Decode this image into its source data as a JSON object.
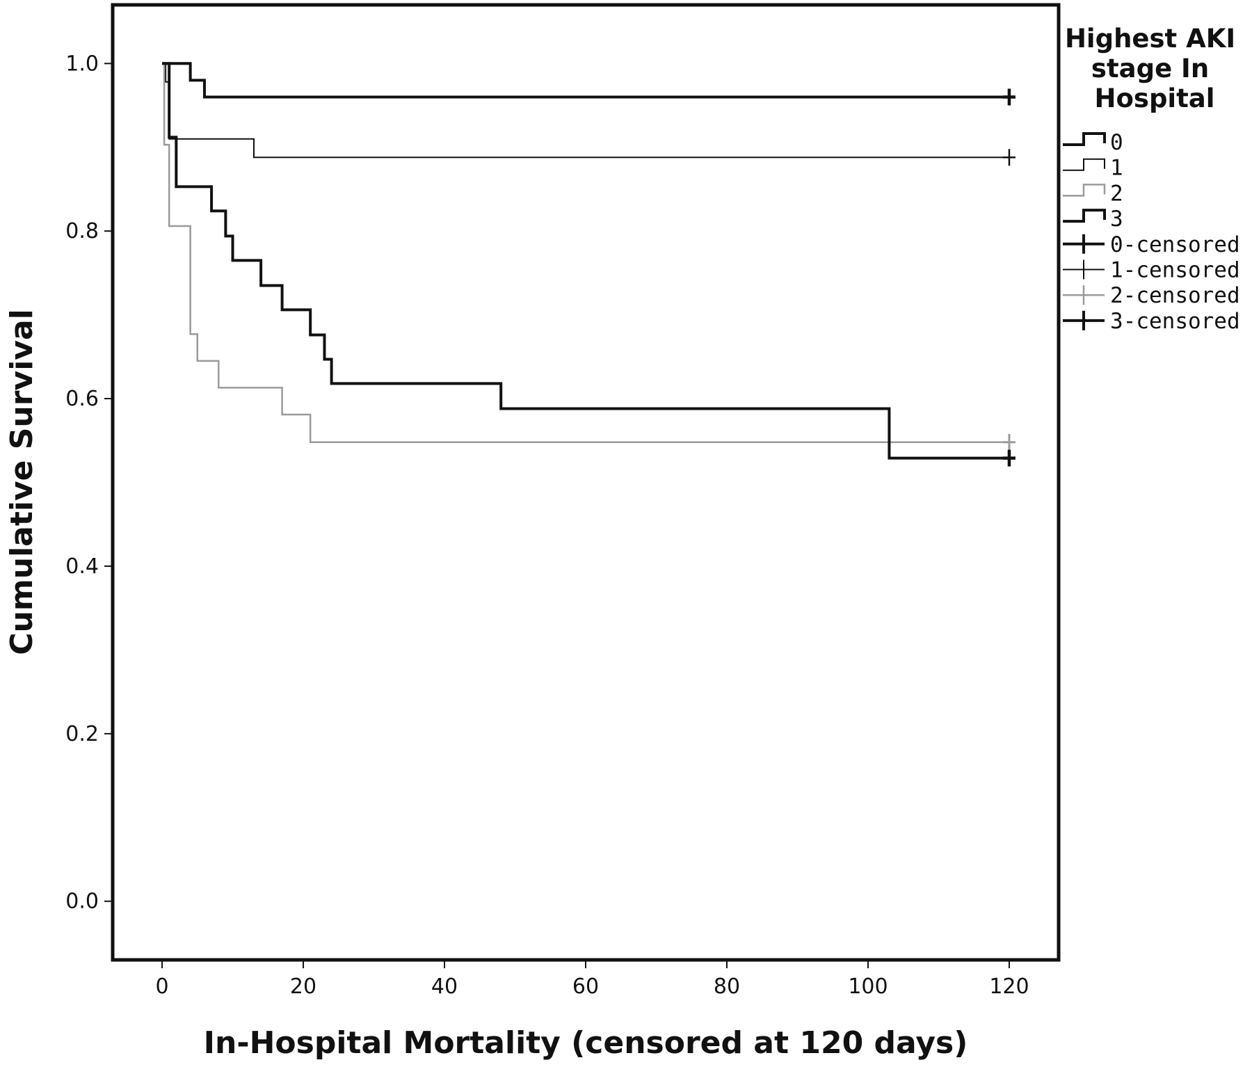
{
  "chart_data": {
    "type": "line",
    "xlabel": "In-Hospital Mortality (censored at 120 days)",
    "ylabel": "Cumulative Survival",
    "xlim": [
      -7,
      127
    ],
    "ylim": [
      -0.07,
      1.07
    ],
    "x_ticks": [
      0,
      20,
      40,
      60,
      80,
      100,
      120
    ],
    "x_tick_labels": [
      "0",
      "20",
      "40",
      "60",
      "80",
      "100",
      "120"
    ],
    "y_ticks": [
      0.0,
      0.2,
      0.4,
      0.6,
      0.8,
      1.0
    ],
    "y_tick_labels": [
      "0.0",
      "0.2",
      "0.4",
      "0.6",
      "0.8",
      "1.0"
    ],
    "grid": false,
    "legend": {
      "title_lines": [
        "Highest AKI",
        "stage In",
        "Hospital"
      ],
      "placement": "right",
      "entries": [
        {
          "label": "0",
          "kind": "step",
          "series": 0
        },
        {
          "label": "1",
          "kind": "step",
          "series": 1
        },
        {
          "label": "2",
          "kind": "step",
          "series": 2
        },
        {
          "label": "3",
          "kind": "step",
          "series": 3
        },
        {
          "label": "0-censored",
          "kind": "censor",
          "series": 0
        },
        {
          "label": "1-censored",
          "kind": "censor",
          "series": 1
        },
        {
          "label": "2-censored",
          "kind": "censor",
          "series": 2
        },
        {
          "label": "3-censored",
          "kind": "censor",
          "series": 3
        }
      ]
    },
    "series": [
      {
        "name": "0",
        "color": "#111111",
        "weight": "bold",
        "steps": [
          [
            0,
            1.0
          ],
          [
            4,
            0.98
          ],
          [
            6,
            0.96
          ],
          [
            120,
            0.96
          ]
        ],
        "censored": [
          [
            120,
            0.96
          ]
        ]
      },
      {
        "name": "1",
        "color": "#111111",
        "weight": "thin",
        "steps": [
          [
            0,
            1.0
          ],
          [
            0.5,
            0.978
          ],
          [
            1,
            0.91
          ],
          [
            13,
            0.888
          ],
          [
            120,
            0.888
          ]
        ],
        "censored": [
          [
            120,
            0.888
          ]
        ]
      },
      {
        "name": "2",
        "color": "#9a9a9a",
        "weight": "normal",
        "steps": [
          [
            0,
            1.0
          ],
          [
            0.3,
            0.903
          ],
          [
            1,
            0.806
          ],
          [
            4,
            0.677
          ],
          [
            5,
            0.645
          ],
          [
            8,
            0.613
          ],
          [
            17,
            0.581
          ],
          [
            21,
            0.548
          ],
          [
            120,
            0.548
          ]
        ],
        "censored": [
          [
            120,
            0.548
          ]
        ]
      },
      {
        "name": "3",
        "color": "#111111",
        "weight": "bold",
        "steps": [
          [
            0,
            1.0
          ],
          [
            1,
            0.912
          ],
          [
            2,
            0.853
          ],
          [
            7,
            0.824
          ],
          [
            9,
            0.794
          ],
          [
            10,
            0.765
          ],
          [
            14,
            0.735
          ],
          [
            17,
            0.706
          ],
          [
            21,
            0.676
          ],
          [
            23,
            0.647
          ],
          [
            24,
            0.618
          ],
          [
            48,
            0.588
          ],
          [
            103,
            0.529
          ],
          [
            120,
            0.529
          ]
        ],
        "censored": [
          [
            120,
            0.529
          ]
        ]
      }
    ]
  }
}
